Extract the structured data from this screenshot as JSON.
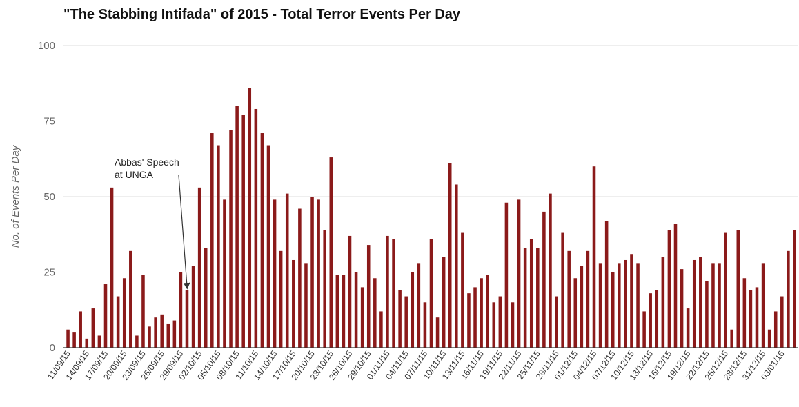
{
  "chart_data": {
    "type": "bar",
    "title": "\"The Stabbing Intifada\" of 2015 - Total Terror Events Per Day",
    "xlabel": "",
    "ylabel": "No. of Events Per Day",
    "ylim": [
      0,
      100
    ],
    "yticks": [
      0,
      25,
      50,
      75,
      100
    ],
    "grid": true,
    "bar_color": "#8b1a1a",
    "tick_labels": [
      "11/09/15",
      "14/09/15",
      "17/09/15",
      "20/09/15",
      "23/09/15",
      "26/09/15",
      "29/09/15",
      "02/10/15",
      "05/10/15",
      "08/10/15",
      "11/10/15",
      "14/10/15",
      "17/10/15",
      "20/10/15",
      "23/10/15",
      "26/10/15",
      "29/10/15",
      "01/11/15",
      "04/11/15",
      "07/11/15",
      "10/11/15",
      "13/11/15",
      "16/11/15",
      "19/11/15",
      "22/11/15",
      "25/11/15",
      "28/11/15",
      "01/12/15",
      "04/12/15",
      "07/12/15",
      "10/12/15",
      "13/12/15",
      "16/12/15",
      "19/12/15",
      "22/12/15",
      "25/12/15",
      "28/12/15",
      "31/12/15",
      "03/01/16"
    ],
    "values": [
      6,
      5,
      12,
      3,
      13,
      4,
      21,
      53,
      17,
      23,
      32,
      4,
      24,
      7,
      10,
      11,
      8,
      9,
      25,
      19,
      27,
      53,
      33,
      71,
      67,
      49,
      72,
      80,
      77,
      86,
      79,
      71,
      67,
      49,
      32,
      51,
      29,
      46,
      28,
      50,
      49,
      39,
      63,
      24,
      24,
      37,
      25,
      20,
      34,
      23,
      12,
      37,
      36,
      19,
      17,
      25,
      28,
      15,
      36,
      10,
      30,
      61,
      54,
      38,
      18,
      20,
      23,
      24,
      15,
      17,
      48,
      15,
      49,
      33,
      36,
      33,
      45,
      51,
      17,
      38,
      32,
      23,
      27,
      32,
      60,
      28,
      42,
      25,
      28,
      29,
      31,
      28,
      12,
      18,
      19,
      30,
      39,
      41,
      26,
      13,
      29,
      30,
      22,
      28,
      28,
      38,
      6,
      39,
      23,
      19,
      20,
      28,
      6,
      12,
      17,
      32,
      39
    ],
    "annotation": {
      "text_lines": [
        "Abbas' Speech",
        "at UNGA"
      ],
      "target_index": 19
    }
  }
}
